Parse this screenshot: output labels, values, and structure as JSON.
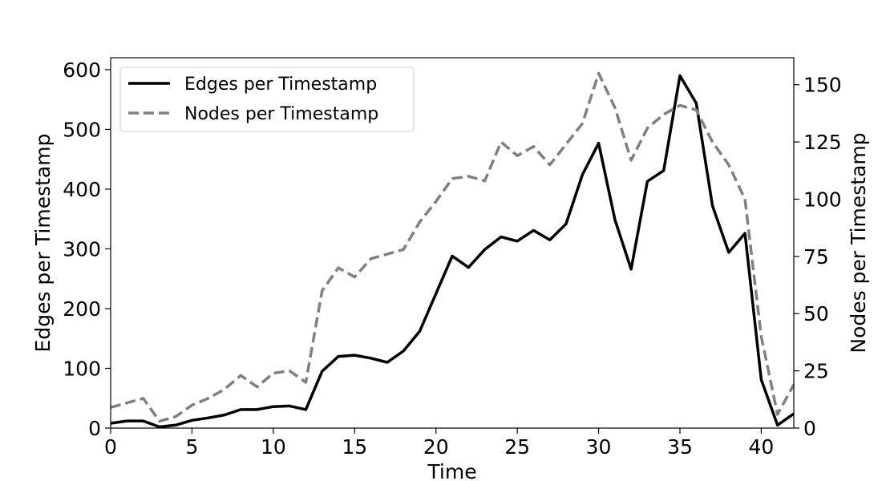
{
  "chart_data": {
    "type": "line",
    "xlabel": "Time",
    "ylabel": "Edges per Timestamp",
    "ylabel_right": "Nodes per Timestamp",
    "xlim": [
      0,
      42
    ],
    "ylim": [
      0,
      620
    ],
    "ylim_right": [
      0,
      161.8
    ],
    "xticks": [
      0,
      5,
      10,
      15,
      20,
      25,
      30,
      35,
      40
    ],
    "yticks": [
      0,
      100,
      200,
      300,
      400,
      500,
      600
    ],
    "yticks_right": [
      0,
      25,
      50,
      75,
      100,
      125,
      150
    ],
    "legend_position": "top-left",
    "grid": false,
    "x": [
      0,
      1,
      2,
      3,
      4,
      5,
      6,
      7,
      8,
      9,
      10,
      11,
      12,
      13,
      14,
      15,
      16,
      17,
      18,
      19,
      20,
      21,
      22,
      23,
      24,
      25,
      26,
      27,
      28,
      29,
      30,
      31,
      32,
      33,
      34,
      35,
      36,
      37,
      38,
      39,
      40,
      41,
      42
    ],
    "series": [
      {
        "name": "Edges per Timestamp",
        "axis": "left",
        "color": "#000000",
        "style": "solid",
        "values": [
          8,
          12,
          12,
          2,
          5,
          13,
          17,
          22,
          31,
          31,
          36,
          37,
          31,
          95,
          120,
          122,
          117,
          110,
          129,
          162,
          225,
          288,
          269,
          299,
          320,
          313,
          331,
          315,
          342,
          424,
          477,
          349,
          266,
          413,
          431,
          590,
          544,
          372,
          294,
          326,
          81,
          5,
          24
        ]
      },
      {
        "name": "Nodes per Timestamp",
        "axis": "right",
        "color": "#808080",
        "style": "dashed",
        "values": [
          9,
          11,
          13,
          3,
          5,
          10,
          13,
          17,
          23,
          18,
          24,
          25,
          20,
          60,
          70,
          66,
          74,
          76,
          78,
          90,
          99,
          109,
          110,
          108,
          125,
          119,
          123,
          115,
          124,
          133,
          155,
          140,
          117,
          131,
          137,
          141,
          139,
          125,
          115,
          100,
          40,
          6,
          19
        ]
      }
    ]
  }
}
